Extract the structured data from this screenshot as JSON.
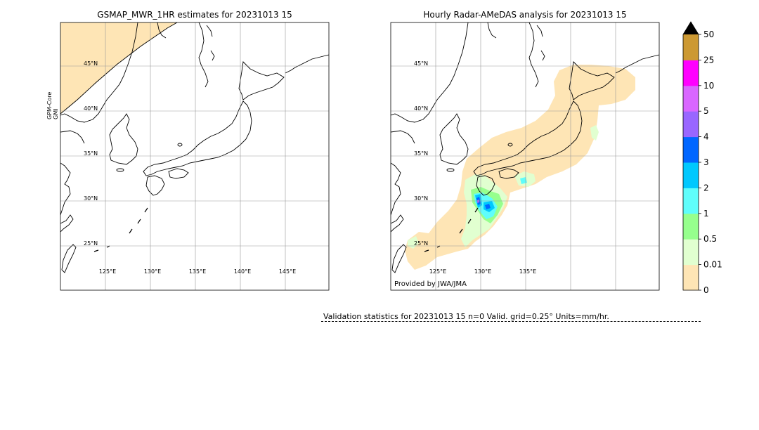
{
  "chart_data": [
    {
      "type": "map",
      "title": "GSMAP_MWR_1HR estimates for 20231013 15",
      "side_label_line1": "GPM-Core",
      "side_label_line2": "GMI",
      "lat_ticks": [
        "45°N",
        "40°N",
        "35°N",
        "30°N",
        "25°N"
      ],
      "lon_ticks": [
        "125°E",
        "130°E",
        "135°E",
        "140°E",
        "145°E"
      ],
      "grid": true,
      "annotation": ""
    },
    {
      "type": "map",
      "title": "Hourly Radar-AMeDAS analysis for 20231013 15",
      "lat_ticks": [
        "45°N",
        "40°N",
        "35°N",
        "30°N",
        "25°N"
      ],
      "lon_ticks": [
        "125°E",
        "130°E",
        "135°E"
      ],
      "grid": true,
      "annotation": "Provided by JWA/JMA"
    },
    {
      "type": "colorbar",
      "units": "mm/hr",
      "levels": [
        "0",
        "0.01",
        "0.5",
        "1",
        "2",
        "3",
        "4",
        "5",
        "10",
        "25",
        "50"
      ],
      "colors": [
        "#fee5b5",
        "#e1ffd0",
        "#96ff8d",
        "#5ffdfb",
        "#00c8fe",
        "#0066ff",
        "#9966ff",
        "#d966ff",
        "#ff00ff",
        "#cc9933"
      ],
      "extend_color": "#000000"
    }
  ],
  "validation_text": "Validation statistics for 20231013 15  n=0 Valid. grid=0.25° Units=mm/hr."
}
